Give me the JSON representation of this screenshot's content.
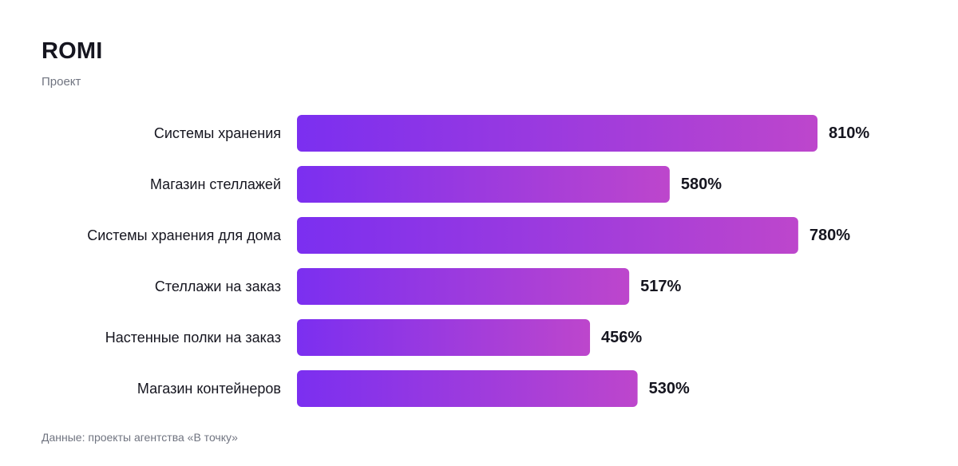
{
  "header": {
    "title": "ROMI",
    "subtitle": "Проект"
  },
  "footer": {
    "source": "Данные: проекты агентства «В точку»"
  },
  "colors": {
    "bar_start": "#7b2ff0",
    "bar_end": "#bd46cc"
  },
  "chart_data": {
    "type": "bar",
    "orientation": "horizontal",
    "title": "ROMI",
    "subtitle": "Проект",
    "categories": [
      "Системы хранения",
      "Магазин стеллажей",
      "Системы хранения для дома",
      "Стеллажи на заказ",
      "Настенные полки на заказ",
      "Магазин контейнеров"
    ],
    "values": [
      810,
      580,
      780,
      517,
      456,
      530
    ],
    "value_labels": [
      "810%",
      "580%",
      "780%",
      "517%",
      "456%",
      "530%"
    ],
    "unit": "%",
    "xlim": [
      0,
      810
    ],
    "grid": false,
    "legend": "none"
  }
}
